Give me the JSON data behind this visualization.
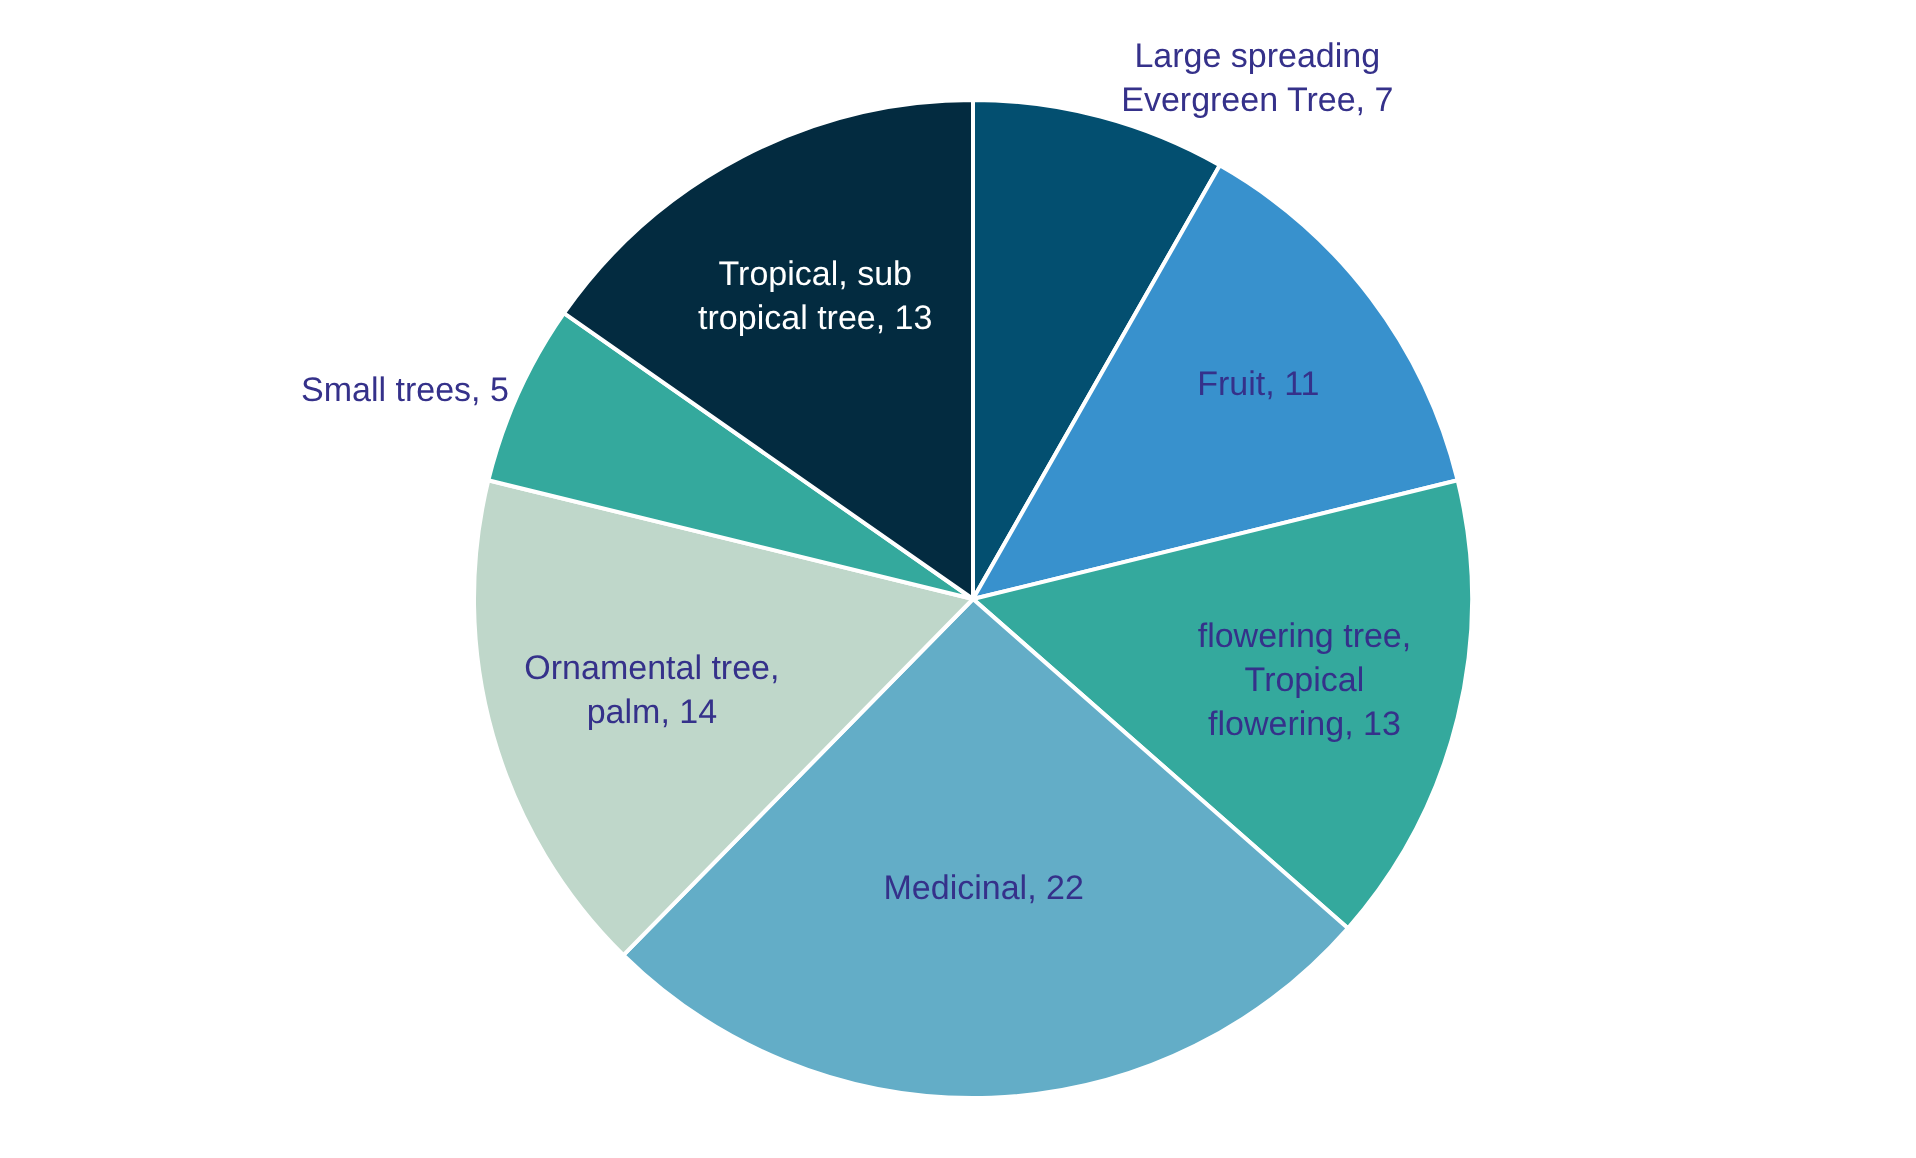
{
  "chart_data": {
    "type": "pie",
    "categories": [
      "Large spreading Evergreen Tree, 7",
      "Fruit, 11",
      "flowering tree, Tropical flowering, 13",
      "Medicinal, 22",
      "Ornamental tree, palm, 14",
      "Small trees, 5",
      "Tropical, sub tropical tree, 13"
    ],
    "values": [
      7,
      11,
      13,
      22,
      14,
      5,
      13
    ],
    "colors": [
      "#034f70",
      "#3891cd",
      "#34a99d",
      "#63adc7",
      "#bfd7ca",
      "#34a99d",
      "#032b40"
    ],
    "legend": false
  }
}
